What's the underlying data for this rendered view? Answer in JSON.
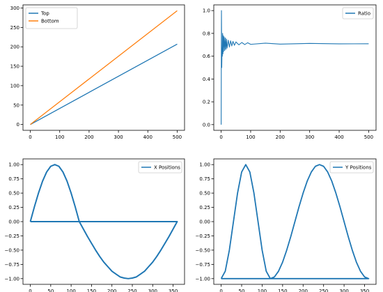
{
  "colors": {
    "blue": "#1f77b4",
    "orange": "#ff7f0e",
    "axis": "#000000",
    "background": "#ffffff"
  },
  "chart_data": [
    {
      "type": "line",
      "title": "",
      "xlabel": "",
      "ylabel": "",
      "xlim": [
        -25,
        525
      ],
      "ylim": [
        -15,
        308
      ],
      "x_ticks": [
        0,
        100,
        200,
        300,
        400,
        500
      ],
      "y_ticks": [
        0,
        50,
        100,
        150,
        200,
        250,
        300
      ],
      "grid": false,
      "legend_position": "upper-left",
      "series": [
        {
          "name": "Top",
          "color": "#1f77b4",
          "x": [
            0,
            500
          ],
          "y": [
            0,
            207
          ]
        },
        {
          "name": "Bottom",
          "color": "#ff7f0e",
          "x": [
            0,
            500
          ],
          "y": [
            0,
            293
          ]
        }
      ]
    },
    {
      "type": "line",
      "title": "",
      "xlabel": "",
      "ylabel": "",
      "xlim": [
        -25,
        525
      ],
      "ylim": [
        -0.05,
        1.05
      ],
      "x_ticks": [
        0,
        100,
        200,
        300,
        400,
        500
      ],
      "y_ticks": [
        0.0,
        0.2,
        0.4,
        0.6,
        0.8,
        1.0
      ],
      "grid": false,
      "legend_position": "upper-right",
      "series": [
        {
          "name": "Ratio",
          "color": "#1f77b4",
          "x": [
            0,
            1,
            2,
            3,
            4,
            5,
            6,
            7,
            8,
            10,
            12,
            14,
            16,
            18,
            20,
            24,
            28,
            32,
            36,
            40,
            45,
            50,
            60,
            70,
            80,
            90,
            100,
            150,
            200,
            300,
            400,
            500
          ],
          "y": [
            0.0,
            1.0,
            0.5,
            0.67,
            0.6,
            0.8,
            0.62,
            0.78,
            0.64,
            0.77,
            0.65,
            0.76,
            0.66,
            0.75,
            0.67,
            0.74,
            0.68,
            0.735,
            0.69,
            0.73,
            0.695,
            0.725,
            0.7,
            0.72,
            0.702,
            0.718,
            0.704,
            0.714,
            0.706,
            0.712,
            0.708,
            0.709
          ]
        }
      ]
    },
    {
      "type": "line",
      "title": "",
      "xlabel": "",
      "ylabel": "",
      "xlim": [
        -18,
        378
      ],
      "ylim": [
        -1.1,
        1.1
      ],
      "x_ticks": [
        0,
        50,
        100,
        150,
        200,
        250,
        300,
        350
      ],
      "y_ticks": [
        -1.0,
        -0.75,
        -0.5,
        -0.25,
        0.0,
        0.25,
        0.5,
        0.75,
        1.0
      ],
      "grid": false,
      "legend_position": "upper-right",
      "series": [
        {
          "name": "X Positions",
          "color": "#1f77b4",
          "x": [
            0,
            10,
            20,
            30,
            40,
            50,
            60,
            70,
            80,
            90,
            100,
            110,
            120,
            130,
            140,
            150,
            160,
            170,
            180,
            190,
            200,
            210,
            220,
            230,
            240,
            250,
            260,
            270,
            280,
            290,
            300,
            310,
            320,
            330,
            340,
            350,
            360,
            0
          ],
          "y": [
            0.0,
            0.26,
            0.5,
            0.71,
            0.87,
            0.97,
            1.0,
            0.97,
            0.87,
            0.71,
            0.5,
            0.26,
            0.0,
            -0.13,
            -0.26,
            -0.38,
            -0.5,
            -0.61,
            -0.71,
            -0.79,
            -0.87,
            -0.92,
            -0.97,
            -0.99,
            -1.0,
            -0.99,
            -0.97,
            -0.92,
            -0.87,
            -0.79,
            -0.71,
            -0.61,
            -0.5,
            -0.38,
            -0.26,
            -0.13,
            0.0,
            0.0
          ]
        }
      ]
    },
    {
      "type": "line",
      "title": "",
      "xlabel": "",
      "ylabel": "",
      "xlim": [
        -18,
        378
      ],
      "ylim": [
        -1.1,
        1.1
      ],
      "x_ticks": [
        0,
        50,
        100,
        150,
        200,
        250,
        300,
        350
      ],
      "y_ticks": [
        -1.0,
        -0.75,
        -0.5,
        -0.25,
        0.0,
        0.25,
        0.5,
        0.75,
        1.0
      ],
      "grid": false,
      "legend_position": "upper-right",
      "series": [
        {
          "name": "Y Positions",
          "color": "#1f77b4",
          "x": [
            0,
            10,
            20,
            30,
            40,
            50,
            60,
            70,
            80,
            90,
            100,
            110,
            120,
            130,
            140,
            150,
            160,
            170,
            180,
            190,
            200,
            210,
            220,
            230,
            240,
            250,
            260,
            270,
            280,
            290,
            300,
            310,
            320,
            330,
            340,
            350,
            360,
            0
          ],
          "y": [
            -1.0,
            -0.87,
            -0.5,
            0.0,
            0.5,
            0.87,
            1.0,
            0.87,
            0.5,
            0.0,
            -0.5,
            -0.87,
            -1.0,
            -0.97,
            -0.87,
            -0.71,
            -0.5,
            -0.26,
            0.0,
            0.26,
            0.5,
            0.71,
            0.87,
            0.97,
            1.0,
            0.97,
            0.87,
            0.71,
            0.5,
            0.26,
            0.0,
            -0.26,
            -0.5,
            -0.71,
            -0.87,
            -0.97,
            -1.0,
            -1.0
          ]
        }
      ]
    }
  ]
}
